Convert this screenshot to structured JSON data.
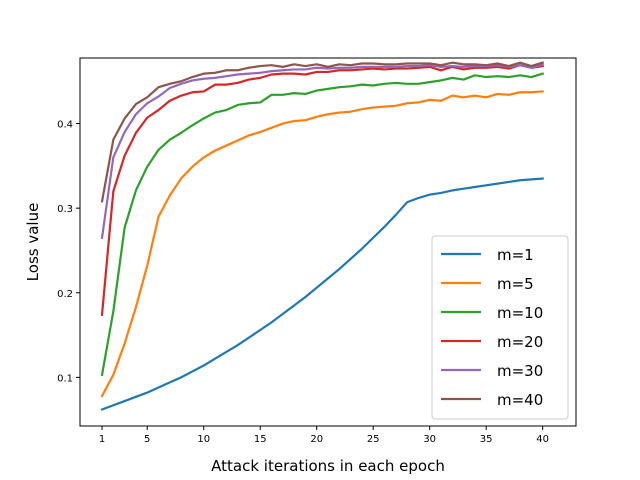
{
  "chart_data": {
    "type": "line",
    "title": "",
    "xlabel": "Attack iterations in each epoch",
    "ylabel": "Loss value",
    "xlim": [
      -0.95,
      42.95
    ],
    "ylim": [
      0.0425,
      0.4775
    ],
    "xticks": [
      1,
      5,
      10,
      15,
      20,
      25,
      30,
      35,
      40
    ],
    "yticks": [
      0.1,
      0.2,
      0.3,
      0.4
    ],
    "ytick_labels": [
      "0.1",
      "0.2",
      "0.3",
      "0.4"
    ],
    "grid": false,
    "legend_position": "lower-right",
    "x": [
      1,
      2,
      3,
      4,
      5,
      6,
      7,
      8,
      9,
      10,
      11,
      12,
      13,
      14,
      15,
      16,
      17,
      18,
      19,
      20,
      21,
      22,
      23,
      24,
      25,
      26,
      27,
      28,
      29,
      30,
      31,
      32,
      33,
      34,
      35,
      36,
      37,
      38,
      39,
      40
    ],
    "series": [
      {
        "name": "m=1",
        "color": "#1f77b4",
        "values": [
          0.062,
          0.067,
          0.072,
          0.077,
          0.082,
          0.088,
          0.094,
          0.1,
          0.107,
          0.114,
          0.122,
          0.13,
          0.138,
          0.147,
          0.156,
          0.165,
          0.175,
          0.185,
          0.195,
          0.206,
          0.217,
          0.228,
          0.24,
          0.252,
          0.265,
          0.278,
          0.292,
          0.307,
          0.312,
          0.316,
          0.318,
          0.321,
          0.323,
          0.325,
          0.327,
          0.329,
          0.331,
          0.333,
          0.334,
          0.335
        ]
      },
      {
        "name": "m=5",
        "color": "#ff7f0e",
        "values": [
          0.078,
          0.103,
          0.14,
          0.183,
          0.232,
          0.29,
          0.315,
          0.335,
          0.349,
          0.36,
          0.368,
          0.374,
          0.38,
          0.386,
          0.39,
          0.395,
          0.4,
          0.403,
          0.404,
          0.408,
          0.411,
          0.413,
          0.414,
          0.417,
          0.419,
          0.42,
          0.421,
          0.424,
          0.425,
          0.428,
          0.427,
          0.433,
          0.431,
          0.433,
          0.431,
          0.435,
          0.434,
          0.437,
          0.437,
          0.438
        ]
      },
      {
        "name": "m=10",
        "color": "#2ca02c",
        "values": [
          0.103,
          0.178,
          0.277,
          0.321,
          0.349,
          0.369,
          0.381,
          0.389,
          0.398,
          0.406,
          0.413,
          0.416,
          0.422,
          0.424,
          0.425,
          0.434,
          0.434,
          0.436,
          0.435,
          0.439,
          0.441,
          0.443,
          0.444,
          0.446,
          0.445,
          0.447,
          0.448,
          0.447,
          0.447,
          0.449,
          0.451,
          0.454,
          0.452,
          0.457,
          0.455,
          0.456,
          0.455,
          0.457,
          0.455,
          0.459
        ]
      },
      {
        "name": "m=20",
        "color": "#d62728",
        "values": [
          0.174,
          0.32,
          0.362,
          0.389,
          0.407,
          0.416,
          0.427,
          0.433,
          0.437,
          0.438,
          0.446,
          0.446,
          0.448,
          0.452,
          0.454,
          0.458,
          0.459,
          0.459,
          0.458,
          0.461,
          0.461,
          0.463,
          0.463,
          0.464,
          0.465,
          0.464,
          0.465,
          0.465,
          0.466,
          0.467,
          0.463,
          0.467,
          0.464,
          0.466,
          0.466,
          0.467,
          0.465,
          0.469,
          0.466,
          0.468
        ]
      },
      {
        "name": "m=30",
        "color": "#9467bd",
        "values": [
          0.265,
          0.36,
          0.39,
          0.411,
          0.424,
          0.432,
          0.442,
          0.447,
          0.451,
          0.453,
          0.454,
          0.456,
          0.458,
          0.459,
          0.46,
          0.462,
          0.463,
          0.464,
          0.464,
          0.466,
          0.465,
          0.466,
          0.466,
          0.467,
          0.467,
          0.467,
          0.467,
          0.468,
          0.468,
          0.469,
          0.467,
          0.468,
          0.467,
          0.468,
          0.468,
          0.469,
          0.467,
          0.469,
          0.466,
          0.47
        ]
      },
      {
        "name": "m=40",
        "color": "#8c564b",
        "values": [
          0.308,
          0.381,
          0.406,
          0.423,
          0.431,
          0.443,
          0.447,
          0.45,
          0.455,
          0.459,
          0.46,
          0.463,
          0.463,
          0.466,
          0.468,
          0.469,
          0.467,
          0.47,
          0.468,
          0.47,
          0.467,
          0.47,
          0.469,
          0.471,
          0.471,
          0.47,
          0.47,
          0.471,
          0.471,
          0.471,
          0.469,
          0.472,
          0.47,
          0.47,
          0.469,
          0.471,
          0.468,
          0.472,
          0.468,
          0.472
        ]
      }
    ]
  }
}
